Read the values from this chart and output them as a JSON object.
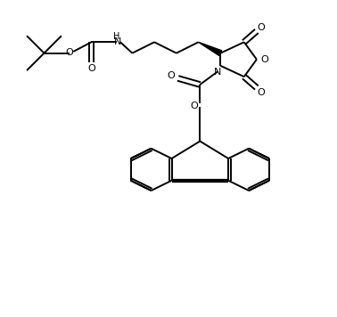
{
  "bg_color": "#ffffff",
  "lw": 1.4,
  "lw_bold": 4.0,
  "figsize": [
    3.78,
    3.56
  ],
  "dpi": 100,
  "xlim": [
    0,
    10
  ],
  "ylim": [
    0,
    10
  ]
}
